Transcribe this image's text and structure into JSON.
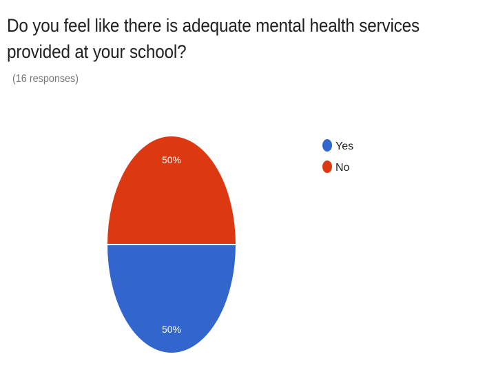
{
  "question": {
    "title": "Do you feel like there is adequate mental health services provided at your school?",
    "response_count": "(16 responses)"
  },
  "chart_data": {
    "type": "pie",
    "title": "Do you feel like there is adequate mental health services provided at your school?",
    "categories": [
      "Yes",
      "No"
    ],
    "values": [
      50,
      50
    ],
    "labels": [
      "50%",
      "50%"
    ],
    "colors": [
      "#3366cc",
      "#dc3912"
    ],
    "legend_position": "right"
  }
}
